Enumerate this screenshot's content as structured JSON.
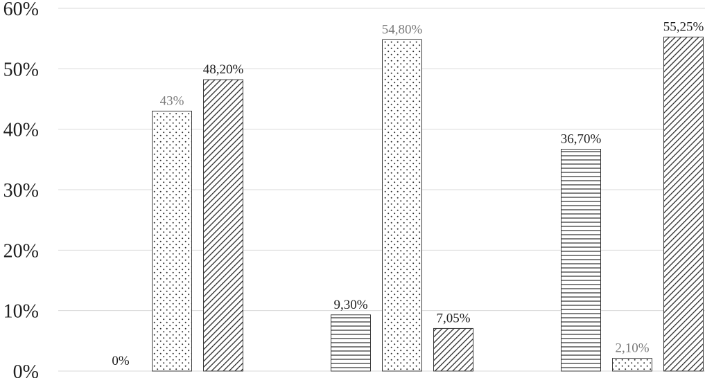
{
  "chart_data": {
    "type": "bar",
    "categories": [
      "",
      "",
      ""
    ],
    "series": [
      {
        "pattern": "horizontal-lines",
        "values": [
          0,
          9.3,
          36.7
        ],
        "labels": [
          "0%",
          "9,30%",
          "36,70%"
        ],
        "label_color": "#1f1f1f"
      },
      {
        "pattern": "dots",
        "values": [
          43,
          54.8,
          2.1
        ],
        "labels": [
          "43%",
          "54,80%",
          "2,10%"
        ],
        "label_color": "#7a7a7a"
      },
      {
        "pattern": "diagonal-lines",
        "values": [
          48.2,
          7.05,
          55.25
        ],
        "labels": [
          "48,20%",
          "7,05%",
          "55,25%"
        ],
        "label_color": "#1f1f1f"
      }
    ],
    "y_ticks": [
      0,
      10,
      20,
      30,
      40,
      50,
      60
    ],
    "y_tick_labels": [
      "0%",
      "10%",
      "20%",
      "30%",
      "40%",
      "50%",
      "60%"
    ],
    "ylim": [
      0,
      60
    ],
    "grid": true,
    "legend": "none",
    "colors": {
      "grid": "#d9d9d9",
      "bar_border": "#3a3a3a",
      "pattern_ink": "#2a2a2a",
      "axis_text": "#1f1f1f"
    }
  }
}
